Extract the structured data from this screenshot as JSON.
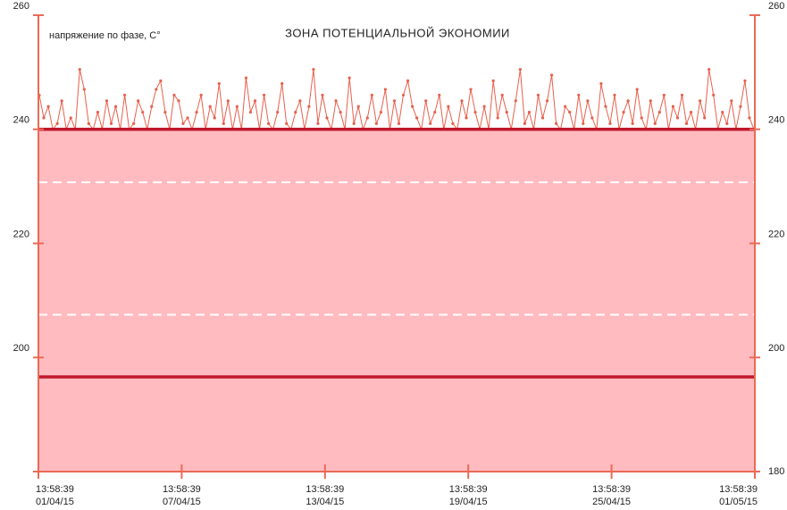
{
  "chart_data": {
    "type": "line",
    "title": "ЗОНА ПОТЕНЦИАЛЬНОЙ ЭКОНОМИИ",
    "ylabel": "напряжение по фазе, С°",
    "ylim": [
      180,
      260
    ],
    "yticks": [
      200,
      220,
      240,
      260
    ],
    "y2lim": [
      180,
      260
    ],
    "y2ticks": [
      180,
      200,
      220,
      240,
      260
    ],
    "zone": {
      "from": 180,
      "to": 240,
      "color": "#ffbbc0"
    },
    "solid_lines": [
      240,
      196.6
    ],
    "dashed_lines": [
      230.7,
      207.5
    ],
    "x_labels": [
      {
        "time": "13:58:39",
        "date": "01/04/15"
      },
      {
        "time": "13:58:39",
        "date": "07/04/15"
      },
      {
        "time": "13:58:39",
        "date": "13/04/15"
      },
      {
        "time": "13:58:39",
        "date": "19/04/15"
      },
      {
        "time": "13:58:39",
        "date": "25/04/15"
      },
      {
        "time": "13:58:39",
        "date": "01/05/15"
      }
    ],
    "axis_color": "#ea6a55",
    "line_color": "#c0172b",
    "series": [
      {
        "name": "напряжение",
        "color": "#e8604c",
        "values": [
          246,
          242,
          244,
          240,
          241,
          245,
          240,
          242,
          240,
          250.5,
          247,
          241,
          240,
          243,
          240,
          245,
          241,
          244,
          240,
          246,
          240,
          241,
          245,
          243,
          240,
          244,
          247,
          248.5,
          243,
          240,
          246,
          245,
          241,
          242,
          240,
          243,
          246,
          240,
          244,
          242,
          248,
          241,
          245,
          240,
          244,
          240,
          249,
          243,
          245,
          240,
          246,
          241,
          240,
          243,
          248,
          241,
          240,
          243,
          245,
          240,
          244,
          250.5,
          241,
          246,
          242,
          240,
          245,
          243,
          240,
          249,
          241,
          244,
          240,
          242,
          246,
          241,
          243,
          247,
          240,
          245,
          241,
          246,
          248.5,
          244,
          242,
          240,
          245,
          241,
          243,
          246,
          240,
          244,
          241,
          240,
          245,
          242,
          247,
          243,
          240,
          244,
          240,
          248.5,
          242,
          246,
          243,
          240,
          245,
          250.5,
          241,
          243,
          240,
          246,
          242,
          245,
          249.5,
          241,
          240,
          244,
          243,
          240,
          246,
          241,
          245,
          242,
          240,
          248,
          244,
          241,
          246,
          240,
          243,
          245,
          241,
          247,
          242,
          240,
          245,
          241,
          243,
          246,
          240,
          244,
          242,
          246,
          241,
          243,
          240,
          245,
          242,
          250.5,
          246,
          240,
          243,
          241,
          245,
          240,
          244,
          248.5,
          242,
          240
        ]
      }
    ]
  }
}
